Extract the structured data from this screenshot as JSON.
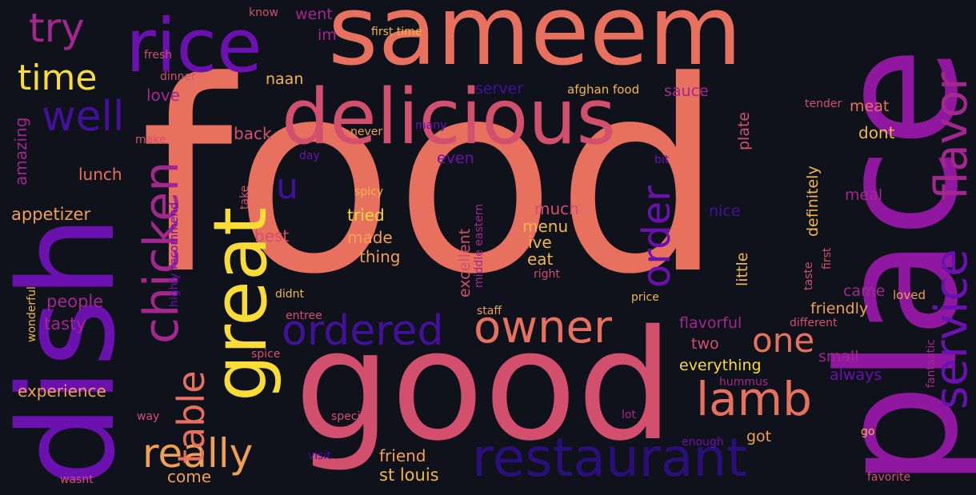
{
  "background": "#0f121b",
  "palette": {
    "coral": "#e8705e",
    "rose": "#d2506e",
    "magenta": "#a3278f",
    "purple": "#9018a0",
    "violet": "#6a11b0",
    "indigo": "#42119c",
    "deep": "#2a0f7a",
    "yellow": "#f9dc37",
    "orange": "#f0a054",
    "amber": "#f2b64a"
  },
  "words": {
    "food": "food",
    "sameem": "sameem",
    "good": "good",
    "place": "place",
    "dish": "dish",
    "rice": "rice",
    "delicious": "delicious",
    "great": "great",
    "service": "service",
    "flavor": "flavor",
    "restaurant": "restaurant",
    "owner": "owner",
    "chicken": "chicken",
    "ordered": "ordered",
    "lamb": "lamb",
    "really": "really",
    "order": "order",
    "table": "table",
    "well": "well",
    "try": "try",
    "time": "time",
    "u": "u",
    "one": "one",
    "appetizer": "appetizer",
    "experience": "experience",
    "people": "people",
    "tasty": "tasty",
    "amazing": "amazing",
    "lunch": "lunch",
    "love": "love",
    "back": "back",
    "best": "best",
    "st_louis": "st louis",
    "friend": "friend",
    "come": "come",
    "tried": "tried",
    "made": "made",
    "thing": "thing",
    "much": "much",
    "menu": "menu",
    "ive": "ive",
    "eat": "eat",
    "excellent": "excellent",
    "even": "even",
    "naan": "naan",
    "went": "went",
    "im": "im",
    "first_time": "first time",
    "know": "know",
    "fresh": "fresh",
    "dinner": "dinner",
    "server": "server",
    "afghan_food": "afghan food",
    "sauce": "sauce",
    "plate": "plate",
    "meat": "meat",
    "tender": "tender",
    "dont": "dont",
    "definitely": "definitely",
    "meal": "meal",
    "nice": "nice",
    "little": "little",
    "friendly": "friendly",
    "came": "came",
    "loved": "loved",
    "flavorful": "flavorful",
    "two": "two",
    "everything": "everything",
    "small": "small",
    "always": "always",
    "different": "different",
    "hummus": "hummus",
    "got": "got",
    "enough": "enough",
    "go": "go",
    "favorite": "favorite",
    "fantastic": "fantastic",
    "taste": "taste",
    "first": "first",
    "price": "price",
    "staff": "staff",
    "right": "right",
    "middle_eastern": "middle eastern",
    "spicy": "spicy",
    "never": "never",
    "many": "many",
    "make": "make",
    "day": "day",
    "bit": "bit",
    "take": "take",
    "highly_recommend": "highly recommend",
    "didnt": "didnt",
    "entree": "entree",
    "spice": "spice",
    "special": "special",
    "visit": "visit",
    "lot": "lot",
    "wasnt": "wasnt",
    "way": "way",
    "wonderful": "wonderful"
  }
}
